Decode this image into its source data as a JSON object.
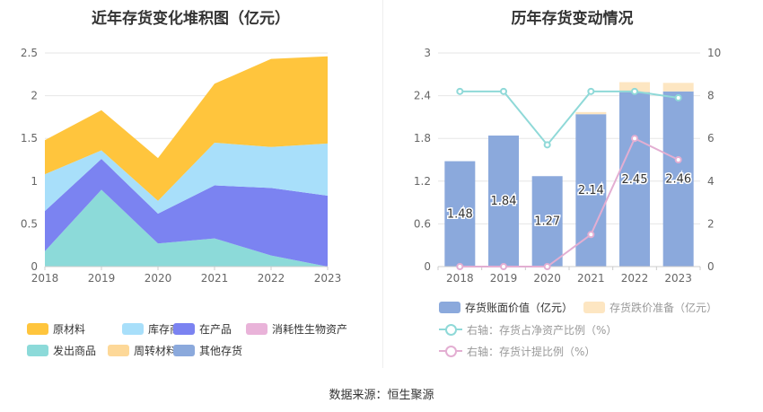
{
  "footer": "数据来源：恒生聚源",
  "colors": {
    "raw_materials": "#FFC53D",
    "finished_goods": "#A8DFFA",
    "wip": "#7B83F1",
    "consumable": "#E9B3D9",
    "goods_shipped": "#8CDAD9",
    "turnover_materials": "#FDD898",
    "other": "#8BA9DC",
    "book_value": "#8BA9DC",
    "provision": "#FDE6C2",
    "ratio_line": "#8FD9D8",
    "provision_ratio_line": "#E3AED2"
  },
  "chart_data": [
    {
      "type": "area",
      "stacked": true,
      "title": "近年存货变化堆积图（亿元）",
      "x": [
        "2018",
        "2019",
        "2020",
        "2021",
        "2022",
        "2023"
      ],
      "ylim": [
        0,
        2.5
      ],
      "yticks": [
        "0",
        "0.5",
        "1",
        "1.5",
        "2",
        "2.5"
      ],
      "grid": true,
      "legend_position": "bottom",
      "legend": [
        "原材料",
        "库存商品",
        "在产品",
        "消耗性生物资产",
        "发出商品",
        "周转材料",
        "其他存货"
      ],
      "series": [
        {
          "name": "发出商品",
          "color_key": "goods_shipped",
          "values": [
            0.18,
            0.9,
            0.27,
            0.33,
            0.13,
            0.0
          ]
        },
        {
          "name": "在产品",
          "color_key": "wip",
          "values": [
            0.47,
            0.36,
            0.35,
            0.62,
            0.79,
            0.83
          ]
        },
        {
          "name": "库存商品",
          "color_key": "finished_goods",
          "values": [
            0.43,
            0.1,
            0.15,
            0.5,
            0.48,
            0.61
          ]
        },
        {
          "name": "原材料",
          "color_key": "raw_materials",
          "values": [
            0.4,
            0.47,
            0.5,
            0.69,
            1.03,
            1.02
          ]
        }
      ]
    },
    {
      "type": "bar",
      "stacked": true,
      "title": "历年存货变动情况",
      "categories": [
        "2018",
        "2019",
        "2020",
        "2021",
        "2022",
        "2023"
      ],
      "ylim": [
        0,
        3
      ],
      "yticks": [
        "0",
        "0.6",
        "1.2",
        "1.8",
        "2.4",
        "3"
      ],
      "y2lim": [
        0,
        10
      ],
      "y2ticks": [
        "0",
        "2",
        "4",
        "6",
        "8",
        "10"
      ],
      "grid": true,
      "legend_position": "bottom",
      "series": [
        {
          "name": "存货账面价值（亿元）",
          "type": "bar",
          "color_key": "book_value",
          "values": [
            1.48,
            1.84,
            1.27,
            2.14,
            2.45,
            2.46
          ],
          "labels": [
            "1.48",
            "1.84",
            "1.27",
            "2.14",
            "2.45",
            "2.46"
          ]
        },
        {
          "name": "存货跌价准备（亿元）",
          "type": "bar",
          "color_key": "provision",
          "values": [
            0,
            0,
            0,
            0.03,
            0.14,
            0.12
          ]
        },
        {
          "name": "右轴：存货占净资产比例（%）",
          "type": "line",
          "axis": "right",
          "color_key": "ratio_line",
          "values": [
            8.2,
            8.2,
            5.7,
            8.2,
            8.2,
            7.9
          ]
        },
        {
          "name": "右轴：存货计提比例（%）",
          "type": "line",
          "axis": "right",
          "color_key": "provision_ratio_line",
          "values": [
            0,
            0,
            0,
            1.5,
            6.0,
            5.0
          ]
        }
      ]
    }
  ]
}
